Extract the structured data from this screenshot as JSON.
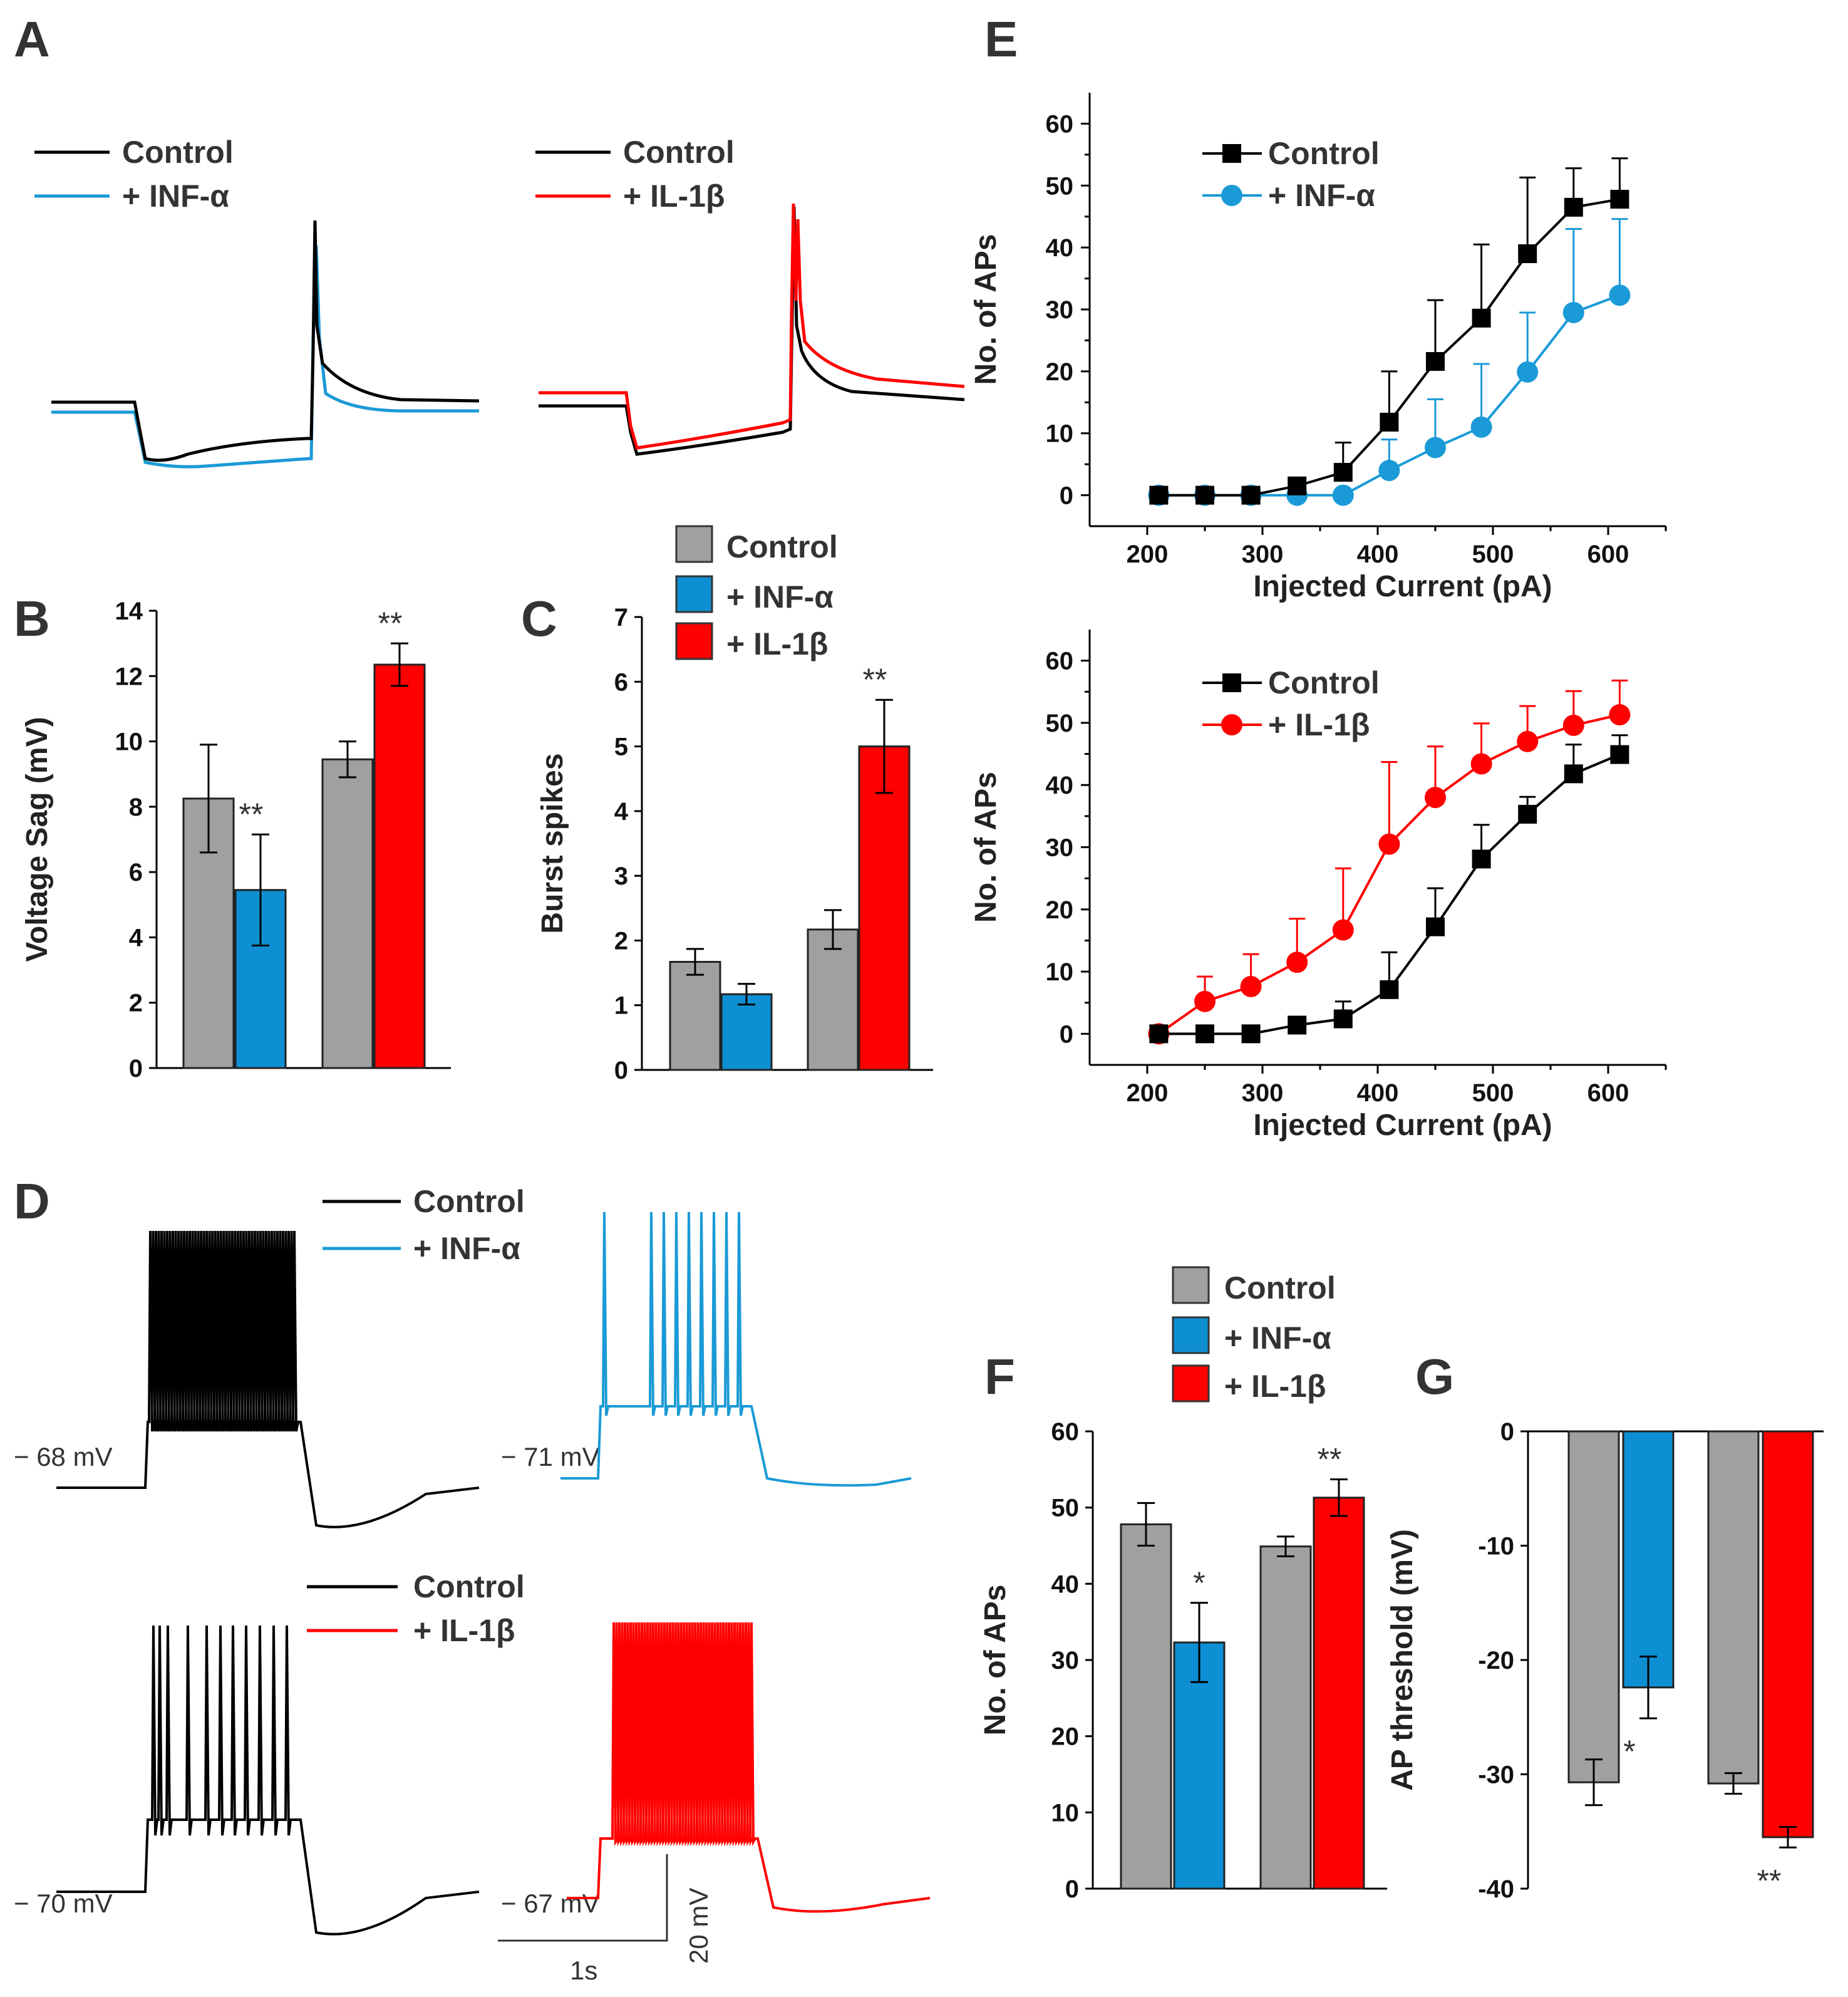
{
  "panel_labels": {
    "A": "A",
    "B": "B",
    "C": "C",
    "D": "D",
    "E": "E",
    "F": "F",
    "G": "G"
  },
  "colors": {
    "control": "#000000",
    "inf": "#1a9ad6",
    "il": "#ff0000",
    "bar_control": "#a0a0a0",
    "bar_inf": "#0e8fd3",
    "bar_il": "#ff0000"
  },
  "panelA": {
    "left_legend": [
      "Control",
      "+ INF-α"
    ],
    "right_legend": [
      "Control",
      "+ IL-1β"
    ]
  },
  "panelD": {
    "top_legend": [
      "Control",
      "+ INF-α"
    ],
    "bottom_legend": [
      "Control",
      "+ IL-1β"
    ],
    "rest_labels": [
      "− 68 mV",
      "− 71 mV",
      "− 70 mV",
      "− 67 mV"
    ],
    "scale_time": "1s",
    "scale_voltage": "20 mV"
  },
  "bar_legend": [
    "Control",
    "+ INF-α",
    "+ IL-1β"
  ],
  "chart_data": [
    {
      "panel": "B",
      "type": "bar",
      "ylabel": "Voltage Sag (mV)",
      "ylim": [
        0,
        14
      ],
      "yticks": [
        "0",
        "2",
        "4",
        "6",
        "8",
        "10",
        "12",
        "14"
      ],
      "bars": [
        {
          "group": "Control",
          "value": 8.25,
          "error": 1.65
        },
        {
          "group": "+ INF-α",
          "value": 5.45,
          "error": 1.7
        },
        {
          "group": "Control",
          "value": 9.45,
          "error": 0.55
        },
        {
          "group": "+ IL-1β",
          "value": 12.35,
          "error": 0.65
        }
      ],
      "annotations": [
        {
          "text": "**",
          "bar": 1
        },
        {
          "text": "**",
          "bar": 3
        }
      ]
    },
    {
      "panel": "C",
      "type": "bar",
      "ylabel": "Burst spikes",
      "ylim": [
        0,
        7
      ],
      "yticks": [
        "0",
        "1",
        "2",
        "3",
        "4",
        "5",
        "6",
        "7"
      ],
      "bars": [
        {
          "group": "Control",
          "value": 1.67,
          "error": 0.2
        },
        {
          "group": "+ INF-α",
          "value": 1.17,
          "error": 0.16
        },
        {
          "group": "Control",
          "value": 2.17,
          "error": 0.3
        },
        {
          "group": "+ IL-1β",
          "value": 5.0,
          "error": 0.72
        }
      ],
      "annotations": [
        {
          "text": "**",
          "bar": 3
        }
      ]
    },
    {
      "panel": "E-top",
      "type": "line",
      "xlabel": "Injected Current (pA)",
      "ylabel": "No. of APs",
      "xlim": [
        150,
        650
      ],
      "ylim": [
        -5,
        65
      ],
      "xticks": [
        "200",
        "300",
        "400",
        "500",
        "600"
      ],
      "yticks": [
        "0",
        "10",
        "20",
        "30",
        "40",
        "50",
        "60"
      ],
      "x": [
        210,
        250,
        290,
        330,
        370,
        410,
        450,
        490,
        530,
        570,
        610
      ],
      "series": [
        {
          "name": "Control",
          "marker": "square",
          "values": [
            0,
            0,
            0,
            1.5,
            3.7,
            11.8,
            21.6,
            28.6,
            39.0,
            46.5,
            47.8
          ],
          "errors": [
            0,
            0,
            0,
            1.2,
            4.8,
            8.2,
            9.9,
            11.9,
            12.3,
            6.3,
            6.6
          ]
        },
        {
          "name": "+ INF-α",
          "marker": "circle",
          "values": [
            0,
            0,
            0,
            0,
            0,
            4.0,
            7.7,
            11.0,
            19.9,
            29.5,
            32.3
          ],
          "errors": [
            0,
            0,
            0,
            0,
            0,
            5.0,
            7.8,
            10.2,
            9.6,
            13.5,
            12.3
          ]
        }
      ]
    },
    {
      "panel": "E-bottom",
      "type": "line",
      "xlabel": "Injected Current (pA)",
      "ylabel": "No. of APs",
      "xlim": [
        150,
        650
      ],
      "ylim": [
        -5,
        65
      ],
      "xticks": [
        "200",
        "300",
        "400",
        "500",
        "600"
      ],
      "yticks": [
        "0",
        "10",
        "20",
        "30",
        "40",
        "50",
        "60"
      ],
      "x": [
        210,
        250,
        290,
        330,
        370,
        410,
        450,
        490,
        530,
        570,
        610
      ],
      "series": [
        {
          "name": "Control",
          "marker": "square",
          "values": [
            0,
            0,
            0,
            1.4,
            2.4,
            7.1,
            17.2,
            28.1,
            35.3,
            41.8,
            44.9
          ],
          "errors": [
            0,
            0,
            0,
            0.8,
            2.8,
            6.0,
            6.2,
            5.5,
            2.8,
            4.7,
            3.1
          ]
        },
        {
          "name": "+ IL-1β",
          "marker": "circle",
          "values": [
            0,
            5.2,
            7.6,
            11.5,
            16.7,
            30.5,
            38.0,
            43.4,
            47.0,
            49.6,
            51.3
          ],
          "errors": [
            0,
            4.0,
            5.2,
            7.0,
            9.9,
            13.2,
            8.2,
            6.5,
            5.7,
            5.5,
            5.5
          ]
        }
      ]
    },
    {
      "panel": "F",
      "type": "bar",
      "ylabel": "No. of APs",
      "ylim": [
        0,
        60
      ],
      "yticks": [
        "0",
        "10",
        "20",
        "30",
        "40",
        "50",
        "60"
      ],
      "bars": [
        {
          "group": "Control",
          "value": 47.8,
          "error": 2.8
        },
        {
          "group": "+ INF-α",
          "value": 32.3,
          "error": 5.2
        },
        {
          "group": "Control",
          "value": 44.9,
          "error": 1.3
        },
        {
          "group": "+ IL-1β",
          "value": 51.3,
          "error": 2.4
        }
      ],
      "annotations": [
        {
          "text": "*",
          "bar": 1
        },
        {
          "text": "**",
          "bar": 3
        }
      ]
    },
    {
      "panel": "G",
      "type": "bar",
      "ylabel": "AP threshold (mV)",
      "ylim": [
        -40,
        0
      ],
      "yticks": [
        "0",
        "-10",
        "-20",
        "-30",
        "-40"
      ],
      "bars": [
        {
          "group": "Control",
          "value": -30.7,
          "error": 2.0
        },
        {
          "group": "+ INF-α",
          "value": -22.4,
          "error": 2.7
        },
        {
          "group": "Control",
          "value": -30.8,
          "error": 0.9
        },
        {
          "group": "+ IL-1β",
          "value": -35.5,
          "error": 0.9
        }
      ],
      "annotations": [
        {
          "text": "*",
          "bar": 1
        },
        {
          "text": "**",
          "bar": 3
        }
      ]
    }
  ]
}
